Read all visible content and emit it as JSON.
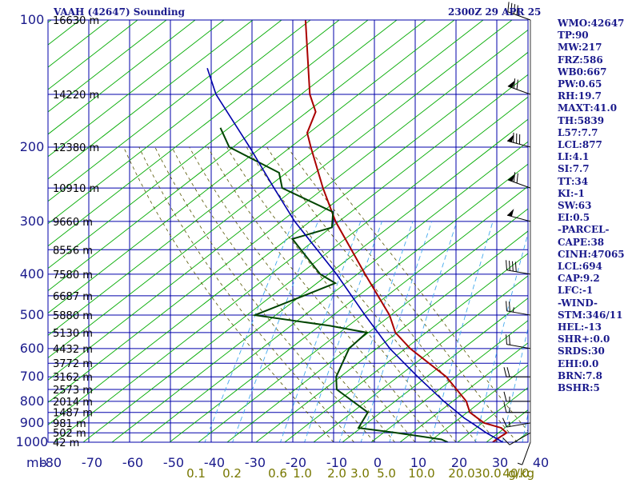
{
  "header": {
    "title": "VAAH (42647) Sounding",
    "time": "2300Z 29 APR 25"
  },
  "indices": [
    "WMO:42647",
    "TP:90",
    "MW:217",
    "FRZ:586",
    "WB0:667",
    "PW:0.65",
    "RH:19.7",
    "MAXT:41.0",
    "TH:5839",
    "L57:7.7",
    "LCL:877",
    "LI:4.1",
    "SI:7.7",
    "TT:34",
    "KI:-1",
    "SW:63",
    "EI:0.5",
    "-PARCEL-",
    "CAPE:38",
    "CINH:47065",
    "LCL:694",
    "CAP:9.2",
    "LFC:-1",
    "-WIND-",
    "STM:346/11",
    "HEL:-13",
    "SHR+:0.0",
    "SRDS:30",
    "EHI:0.0",
    "BRN:7.8",
    "BSHR:5"
  ],
  "chart_data": {
    "type": "line",
    "diagram": "Skew-T log-P",
    "x_axis": {
      "unit_label": "mb",
      "temperature_ticks": [
        -80,
        -70,
        -60,
        -50,
        -40,
        -30,
        -20,
        -10,
        0,
        10,
        20,
        30,
        40
      ],
      "temperature_labels": [
        "-80",
        "-70",
        "-60",
        "-50",
        "-40",
        "-30",
        "-20",
        "-10",
        "0",
        "10",
        "20",
        "30",
        "40"
      ],
      "xlim": [
        -80,
        40
      ],
      "mixing_ratio_labels": [
        "0.1",
        "0.2",
        "0.6",
        "1.0",
        "2.0",
        "3.0",
        "5.0",
        "10.0",
        "20.0",
        "30.0",
        "40.0"
      ],
      "mixing_ratio_unit": "g/kg"
    },
    "y_axis": {
      "scale": "log",
      "pressure_ticks": [
        100,
        200,
        300,
        400,
        500,
        600,
        700,
        800,
        900,
        1000
      ],
      "pressure_labels": [
        "100",
        "200",
        "300",
        "400",
        "500",
        "600",
        "700",
        "800",
        "900",
        "1000"
      ],
      "ylim": [
        1050,
        100
      ],
      "height_labels": [
        {
          "p": 100,
          "label": "16630 m"
        },
        {
          "p": 150,
          "label": "14220 m"
        },
        {
          "p": 200,
          "label": "12380 m"
        },
        {
          "p": 250,
          "label": "10910 m"
        },
        {
          "p": 300,
          "label": "9660 m"
        },
        {
          "p": 350,
          "label": "8556 m"
        },
        {
          "p": 400,
          "label": "7580 m"
        },
        {
          "p": 450,
          "label": "6687 m"
        },
        {
          "p": 500,
          "label": "5880 m"
        },
        {
          "p": 550,
          "label": "5130 m"
        },
        {
          "p": 600,
          "label": "4432 m"
        },
        {
          "p": 650,
          "label": "3772 m"
        },
        {
          "p": 700,
          "label": "3162 m"
        },
        {
          "p": 750,
          "label": "2573 m"
        },
        {
          "p": 800,
          "label": "2014 m"
        },
        {
          "p": 850,
          "label": "1487 m"
        },
        {
          "p": 900,
          "label": "981 m"
        },
        {
          "p": 950,
          "label": "502 m"
        },
        {
          "p": 1000,
          "label": "42 m"
        }
      ]
    },
    "grid": true,
    "series": [
      {
        "role": "temperature",
        "color": "#aa0000",
        "points": [
          {
            "p": 1000,
            "t": 29
          },
          {
            "p": 985,
            "t": 29.5
          },
          {
            "p": 950,
            "t": 31
          },
          {
            "p": 925,
            "t": 29
          },
          {
            "p": 900,
            "t": 24
          },
          {
            "p": 850,
            "t": 19
          },
          {
            "p": 800,
            "t": 16.5
          },
          {
            "p": 700,
            "t": 8
          },
          {
            "p": 600,
            "t": -5
          },
          {
            "p": 550,
            "t": -11
          },
          {
            "p": 500,
            "t": -15
          },
          {
            "p": 400,
            "t": -27
          },
          {
            "p": 300,
            "t": -42
          },
          {
            "p": 250,
            "t": -50
          },
          {
            "p": 200,
            "t": -59
          },
          {
            "p": 185,
            "t": -62
          },
          {
            "p": 165,
            "t": -63
          },
          {
            "p": 150,
            "t": -67
          },
          {
            "p": 100,
            "t": -79
          }
        ]
      },
      {
        "role": "dewpoint",
        "color": "#004400",
        "points": [
          {
            "p": 1000,
            "t": 18
          },
          {
            "p": 985,
            "t": 16
          },
          {
            "p": 950,
            "t": 4
          },
          {
            "p": 925,
            "t": -6
          },
          {
            "p": 850,
            "t": -6
          },
          {
            "p": 750,
            "t": -17
          },
          {
            "p": 700,
            "t": -19
          },
          {
            "p": 600,
            "t": -20
          },
          {
            "p": 550,
            "t": -18
          },
          {
            "p": 530,
            "t": -28
          },
          {
            "p": 500,
            "t": -48
          },
          {
            "p": 420,
            "t": -33
          },
          {
            "p": 400,
            "t": -38
          },
          {
            "p": 330,
            "t": -50
          },
          {
            "p": 310,
            "t": -42
          },
          {
            "p": 285,
            "t": -44
          },
          {
            "p": 250,
            "t": -60
          },
          {
            "p": 230,
            "t": -63
          },
          {
            "p": 200,
            "t": -79
          },
          {
            "p": 180,
            "t": -84
          }
        ]
      },
      {
        "role": "parcel",
        "color": "#0000aa",
        "points": [
          {
            "p": 1000,
            "t": 31.5
          },
          {
            "p": 950,
            "t": 26
          },
          {
            "p": 900,
            "t": 21
          },
          {
            "p": 877,
            "t": 18.5
          },
          {
            "p": 800,
            "t": 11
          },
          {
            "p": 700,
            "t": 1
          },
          {
            "p": 600,
            "t": -10
          },
          {
            "p": 500,
            "t": -21
          },
          {
            "p": 400,
            "t": -34
          },
          {
            "p": 300,
            "t": -52
          },
          {
            "p": 250,
            "t": -62
          },
          {
            "p": 200,
            "t": -74
          },
          {
            "p": 150,
            "t": -90
          },
          {
            "p": 130,
            "t": -96
          }
        ]
      }
    ],
    "wind_barbs": [
      {
        "p": 1000,
        "dir": 200,
        "spd": 5
      },
      {
        "p": 950,
        "dir": 240,
        "spd": 10
      },
      {
        "p": 900,
        "dir": 260,
        "spd": 15
      },
      {
        "p": 850,
        "dir": 270,
        "spd": 15
      },
      {
        "p": 800,
        "dir": 270,
        "spd": 15
      },
      {
        "p": 700,
        "dir": 270,
        "spd": 20
      },
      {
        "p": 600,
        "dir": 280,
        "spd": 20
      },
      {
        "p": 500,
        "dir": 280,
        "spd": 25
      },
      {
        "p": 400,
        "dir": 280,
        "spd": 40
      },
      {
        "p": 300,
        "dir": 285,
        "spd": 50
      },
      {
        "p": 250,
        "dir": 290,
        "spd": 70
      },
      {
        "p": 200,
        "dir": 285,
        "spd": 80
      },
      {
        "p": 150,
        "dir": 290,
        "spd": 70
      },
      {
        "p": 100,
        "dir": 290,
        "spd": 40
      }
    ],
    "colors": {
      "isobar_isotherm": "#0000aa",
      "dry_adiabat": "#00aa00",
      "moist_adiabat": "#555500",
      "mixing_ratio": "#44aaee",
      "mixing_label": "#777700",
      "axis_label": "#1a1a8c"
    }
  }
}
